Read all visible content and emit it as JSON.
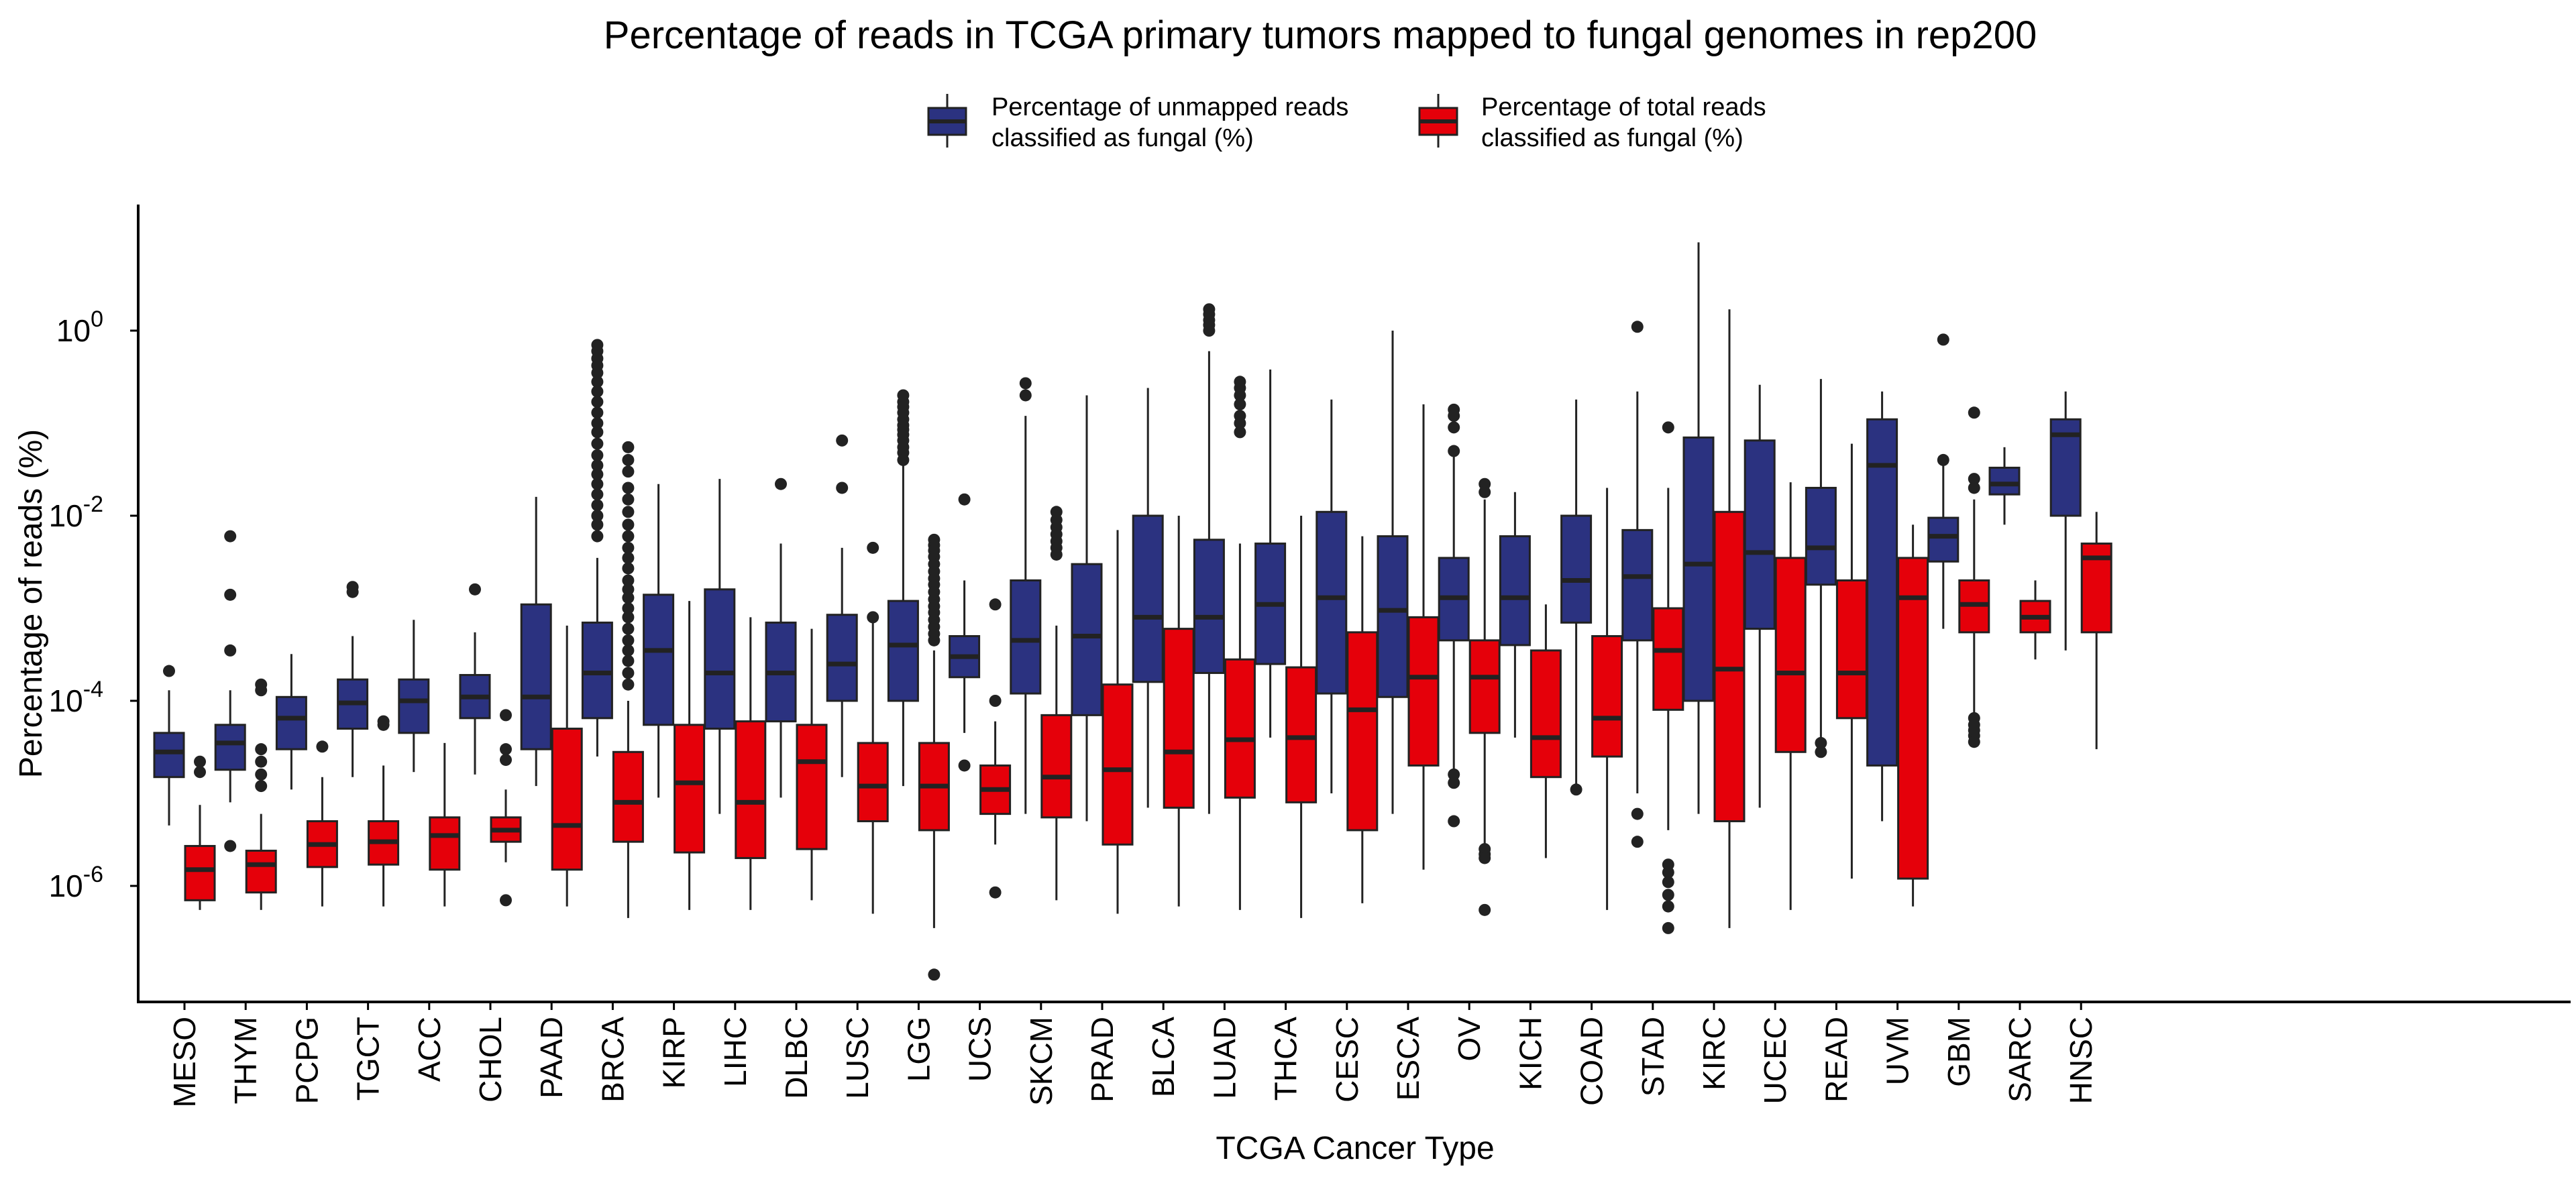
{
  "chart_data": {
    "type": "boxplot",
    "title": "Percentage of reads in TCGA primary tumors mapped to fungal genomes in rep200",
    "xlabel": "TCGA Cancer Type",
    "ylabel": "Percentage of reads (%)",
    "y_scale": "log10",
    "ylim": [
      1e-07,
      20
    ],
    "y_ticks": [
      {
        "value": 1,
        "base": "10",
        "exp": "0"
      },
      {
        "value": 0.01,
        "base": "10",
        "exp": "-2"
      },
      {
        "value": 0.0001,
        "base": "10",
        "exp": "-4"
      },
      {
        "value": 1e-06,
        "base": "10",
        "exp": "-6"
      }
    ],
    "grid": false,
    "legend": {
      "position": "top",
      "entries": [
        {
          "key": "unmapped",
          "label_line1": "Percentage of unmapped reads",
          "label_line2": "classified as fungal (%)",
          "color": "#2B3280"
        },
        {
          "key": "total",
          "label_line1": "Percentage of total reads",
          "label_line2": "classified as fungal (%)",
          "color": "#E5000A"
        }
      ]
    },
    "categories": [
      "MESO",
      "THYM",
      "PCPG",
      "TGCT",
      "ACC",
      "CHOL",
      "PAAD",
      "BRCA",
      "KIRP",
      "LIHC",
      "DLBC",
      "LUSC",
      "LGG",
      "UCS",
      "SKCM",
      "PRAD",
      "BLCA",
      "LUAD",
      "THCA",
      "CESC",
      "ESCA",
      "OV",
      "KICH",
      "COAD",
      "STAD",
      "KIRC",
      "UCEC",
      "READ",
      "UVM",
      "GBM",
      "SARC",
      "HNSC"
    ],
    "series": [
      {
        "key": "unmapped",
        "name": "Percentage of unmapped reads classified as fungal (%)",
        "color": "#2B3280",
        "boxes": [
          {
            "whislo": 4.5e-06,
            "q1": 1.5e-05,
            "med": 2.8e-05,
            "q3": 4.5e-05,
            "whishi": 0.00013,
            "outliers": [
              0.00021
            ]
          },
          {
            "whislo": 8e-06,
            "q1": 1.8e-05,
            "med": 3.5e-05,
            "q3": 5.5e-05,
            "whishi": 0.00013,
            "outliers": [
              0.006,
              0.0014,
              0.00035,
              2.7e-06
            ]
          },
          {
            "whislo": 1.1e-05,
            "q1": 3e-05,
            "med": 6.5e-05,
            "q3": 0.00011,
            "whishi": 0.00032,
            "outliers": []
          },
          {
            "whislo": 1.5e-05,
            "q1": 5e-05,
            "med": 9.5e-05,
            "q3": 0.00017,
            "whishi": 0.0005,
            "outliers": [
              0.0017,
              0.0015
            ]
          },
          {
            "whislo": 1.7e-05,
            "q1": 4.5e-05,
            "med": 0.0001,
            "q3": 0.00017,
            "whishi": 0.00075,
            "outliers": []
          },
          {
            "whislo": 1.6e-05,
            "q1": 6.5e-05,
            "med": 0.00011,
            "q3": 0.00019,
            "whishi": 0.00055,
            "outliers": [
              0.0016
            ]
          },
          {
            "whislo": 1.2e-05,
            "q1": 3e-05,
            "med": 0.00011,
            "q3": 0.0011,
            "whishi": 0.016,
            "outliers": []
          },
          {
            "whislo": 2.5e-05,
            "q1": 6.5e-05,
            "med": 0.0002,
            "q3": 0.0007,
            "whishi": 0.0035,
            "outliers": [
              0.7,
              0.6,
              0.5,
              0.42,
              0.35,
              0.28,
              0.22,
              0.17,
              0.13,
              0.1,
              0.08,
              0.06,
              0.045,
              0.035,
              0.028,
              0.022,
              0.017,
              0.013,
              0.01,
              0.008,
              0.006
            ]
          },
          {
            "whislo": 9e-06,
            "q1": 5.5e-05,
            "med": 0.00035,
            "q3": 0.0014,
            "whishi": 0.022,
            "outliers": []
          },
          {
            "whislo": 6e-06,
            "q1": 5e-05,
            "med": 0.0002,
            "q3": 0.0016,
            "whishi": 0.025,
            "outliers": []
          },
          {
            "whislo": 9e-06,
            "q1": 6e-05,
            "med": 0.0002,
            "q3": 0.0007,
            "whishi": 0.005,
            "outliers": [
              0.022
            ]
          },
          {
            "whislo": 1.5e-05,
            "q1": 0.0001,
            "med": 0.00025,
            "q3": 0.00085,
            "whishi": 0.0045,
            "outliers": [
              0.065,
              0.02
            ]
          },
          {
            "whislo": 1.2e-05,
            "q1": 0.0001,
            "med": 0.0004,
            "q3": 0.0012,
            "whishi": 0.035,
            "outliers": [
              0.2,
              0.17,
              0.15,
              0.13,
              0.11,
              0.095,
              0.085,
              0.075,
              0.065,
              0.055,
              0.048,
              0.04
            ]
          },
          {
            "whislo": 4.5e-05,
            "q1": 0.00018,
            "med": 0.0003,
            "q3": 0.0005,
            "whishi": 0.002,
            "outliers": [
              0.015,
              2e-05
            ]
          },
          {
            "whislo": 6e-06,
            "q1": 0.00012,
            "med": 0.00045,
            "q3": 0.002,
            "whishi": 0.12,
            "outliers": [
              0.27,
              0.2
            ]
          },
          {
            "whislo": 5e-06,
            "q1": 7e-05,
            "med": 0.0005,
            "q3": 0.003,
            "whishi": 0.2,
            "outliers": []
          },
          {
            "whislo": 7e-06,
            "q1": 0.00016,
            "med": 0.0008,
            "q3": 0.01,
            "whishi": 0.24,
            "outliers": []
          },
          {
            "whislo": 6e-06,
            "q1": 0.0002,
            "med": 0.0008,
            "q3": 0.0055,
            "whishi": 0.6,
            "outliers": [
              1.7,
              1.5,
              1.3,
              1.15,
              1
            ]
          },
          {
            "whislo": 4e-05,
            "q1": 0.00025,
            "med": 0.0011,
            "q3": 0.005,
            "whishi": 0.38,
            "outliers": []
          },
          {
            "whislo": 1e-05,
            "q1": 0.00012,
            "med": 0.0013,
            "q3": 0.011,
            "whishi": 0.18,
            "outliers": []
          },
          {
            "whislo": 6e-06,
            "q1": 0.00011,
            "med": 0.00095,
            "q3": 0.006,
            "whishi": 1,
            "outliers": []
          },
          {
            "whislo": 1.5e-05,
            "q1": 0.00045,
            "med": 0.0013,
            "q3": 0.0035,
            "whishi": 0.045,
            "outliers": [
              0.14,
              0.12,
              0.09,
              0.05,
              1.6e-05,
              1.3e-05,
              5e-06
            ]
          },
          {
            "whislo": 4e-05,
            "q1": 0.0004,
            "med": 0.0013,
            "q3": 0.006,
            "whishi": 0.018,
            "outliers": []
          },
          {
            "whislo": 1.2e-05,
            "q1": 0.0007,
            "med": 0.002,
            "q3": 0.01,
            "whishi": 0.18,
            "outliers": [
              1.1e-05
            ]
          },
          {
            "whislo": 1e-05,
            "q1": 0.00045,
            "med": 0.0022,
            "q3": 0.007,
            "whishi": 0.22,
            "outliers": [
              1.1,
              6e-06,
              3e-06
            ]
          },
          {
            "whislo": 6e-06,
            "q1": 0.0001,
            "med": 0.003,
            "q3": 0.07,
            "whishi": 9,
            "outliers": []
          },
          {
            "whislo": 7e-06,
            "q1": 0.0006,
            "med": 0.004,
            "q3": 0.065,
            "whishi": 0.26,
            "outliers": []
          },
          {
            "whislo": 4e-05,
            "q1": 0.0018,
            "med": 0.0045,
            "q3": 0.02,
            "whishi": 0.3,
            "outliers": [
              3.5e-05,
              2.8e-05
            ]
          },
          {
            "whislo": 5e-06,
            "q1": 2e-05,
            "med": 0.035,
            "q3": 0.11,
            "whishi": 0.22,
            "outliers": []
          },
          {
            "whislo": 0.0006,
            "q1": 0.0032,
            "med": 0.006,
            "q3": 0.0095,
            "whishi": 0.045,
            "outliers": [
              0.8,
              0.04
            ]
          },
          {
            "whislo": 0.008,
            "q1": 0.017,
            "med": 0.022,
            "q3": 0.033,
            "whishi": 0.055,
            "outliers": []
          },
          {
            "whislo": 0.00035,
            "q1": 0.01,
            "med": 0.075,
            "q3": 0.11,
            "whishi": 0.22,
            "outliers": []
          }
        ]
      },
      {
        "key": "total",
        "name": "Percentage of total reads classified as fungal (%)",
        "color": "#E5000A",
        "boxes": [
          {
            "whislo": 5.5e-07,
            "q1": 7e-07,
            "med": 1.5e-06,
            "q3": 2.7e-06,
            "whishi": 7.5e-06,
            "outliers": [
              2.2e-05,
              1.7e-05
            ]
          },
          {
            "whislo": 5.5e-07,
            "q1": 8.5e-07,
            "med": 1.7e-06,
            "q3": 2.4e-06,
            "whishi": 6e-06,
            "outliers": [
              0.00015,
              0.00013,
              3e-05,
              2.2e-05,
              1.6e-05,
              1.2e-05
            ]
          },
          {
            "whislo": 6e-07,
            "q1": 1.6e-06,
            "med": 2.8e-06,
            "q3": 5e-06,
            "whishi": 1.5e-05,
            "outliers": [
              3.2e-05
            ]
          },
          {
            "whislo": 6e-07,
            "q1": 1.7e-06,
            "med": 3e-06,
            "q3": 5e-06,
            "whishi": 2e-05,
            "outliers": [
              6e-05,
              5.5e-05
            ]
          },
          {
            "whislo": 6e-07,
            "q1": 1.5e-06,
            "med": 3.5e-06,
            "q3": 5.5e-06,
            "whishi": 3.5e-05,
            "outliers": []
          },
          {
            "whislo": 1.8e-06,
            "q1": 3e-06,
            "med": 4e-06,
            "q3": 5.5e-06,
            "whishi": 1.1e-05,
            "outliers": [
              7e-05,
              3e-05,
              2.3e-05,
              7e-07
            ]
          },
          {
            "whislo": 6e-07,
            "q1": 1.5e-06,
            "med": 4.5e-06,
            "q3": 5e-05,
            "whishi": 0.00065,
            "outliers": []
          },
          {
            "whislo": 4.5e-07,
            "q1": 3e-06,
            "med": 8e-06,
            "q3": 2.8e-05,
            "whishi": 0.0001,
            "outliers": [
              0.055,
              0.04,
              0.03,
              0.02,
              0.015,
              0.011,
              0.008,
              0.006,
              0.0045,
              0.0035,
              0.0027,
              0.002,
              0.0016,
              0.0013,
              0.001,
              0.0008,
              0.0006,
              0.00045,
              0.00035,
              0.00027,
              0.0002,
              0.00015
            ]
          },
          {
            "whislo": 5.5e-07,
            "q1": 2.3e-06,
            "med": 1.3e-05,
            "q3": 5.5e-05,
            "whishi": 0.0012,
            "outliers": []
          },
          {
            "whislo": 5.5e-07,
            "q1": 2e-06,
            "med": 8e-06,
            "q3": 6e-05,
            "whishi": 0.0008,
            "outliers": []
          },
          {
            "whislo": 7e-07,
            "q1": 2.5e-06,
            "med": 2.2e-05,
            "q3": 5.5e-05,
            "whishi": 0.0006,
            "outliers": []
          },
          {
            "whislo": 5e-07,
            "q1": 5e-06,
            "med": 1.2e-05,
            "q3": 3.5e-05,
            "whishi": 0.0008,
            "outliers": [
              0.0045,
              0.0008
            ]
          },
          {
            "whislo": 3.5e-07,
            "q1": 4e-06,
            "med": 1.2e-05,
            "q3": 3.5e-05,
            "whishi": 0.00035,
            "outliers": [
              0.0055,
              0.0048,
              0.0042,
              0.0036,
              0.003,
              0.0025,
              0.0021,
              0.0018,
              0.0015,
              0.00125,
              0.00105,
              0.0009,
              0.00075,
              0.00063,
              0.00053,
              0.00045,
              1.1e-07
            ]
          },
          {
            "whislo": 2.8e-06,
            "q1": 6e-06,
            "med": 1.1e-05,
            "q3": 2e-05,
            "whishi": 6e-05,
            "outliers": [
              0.0011,
              0.0001,
              8.5e-07
            ]
          },
          {
            "whislo": 7e-07,
            "q1": 5.5e-06,
            "med": 1.5e-05,
            "q3": 7e-05,
            "whishi": 0.00065,
            "outliers": [
              0.011,
              0.009,
              0.0075,
              0.0063,
              0.0053,
              0.0045,
              0.0038
            ]
          },
          {
            "whislo": 5e-07,
            "q1": 2.8e-06,
            "med": 1.8e-05,
            "q3": 0.00015,
            "whishi": 0.007,
            "outliers": []
          },
          {
            "whislo": 6e-07,
            "q1": 7e-06,
            "med": 2.8e-05,
            "q3": 0.0006,
            "whishi": 0.01,
            "outliers": []
          },
          {
            "whislo": 5.5e-07,
            "q1": 9e-06,
            "med": 3.8e-05,
            "q3": 0.00028,
            "whishi": 0.005,
            "outliers": [
              0.28,
              0.24,
              0.2,
              0.16,
              0.12,
              0.1,
              0.08
            ]
          },
          {
            "whislo": 4.5e-07,
            "q1": 8e-06,
            "med": 4e-05,
            "q3": 0.00023,
            "whishi": 0.01,
            "outliers": []
          },
          {
            "whislo": 6.5e-07,
            "q1": 4e-06,
            "med": 8e-05,
            "q3": 0.00055,
            "whishi": 0.006,
            "outliers": []
          },
          {
            "whislo": 1.5e-06,
            "q1": 2e-05,
            "med": 0.00018,
            "q3": 0.0008,
            "whishi": 0.16,
            "outliers": []
          },
          {
            "whislo": 2e-06,
            "q1": 4.5e-05,
            "med": 0.00018,
            "q3": 0.00045,
            "whishi": 0.015,
            "outliers": [
              0.022,
              0.018,
              2.5e-06,
              2.2e-06,
              2e-06,
              5.5e-07
            ]
          },
          {
            "whislo": 2e-06,
            "q1": 1.5e-05,
            "med": 4e-05,
            "q3": 0.00035,
            "whishi": 0.0011,
            "outliers": []
          },
          {
            "whislo": 5.5e-07,
            "q1": 2.5e-05,
            "med": 6.5e-05,
            "q3": 0.0005,
            "whishi": 0.02,
            "outliers": []
          },
          {
            "whislo": 4e-06,
            "q1": 8e-05,
            "med": 0.00035,
            "q3": 0.001,
            "whishi": 0.02,
            "outliers": [
              0.09,
              1.7e-06,
              1.4e-06,
              1.1e-06,
              8e-07,
              6e-07,
              3.5e-07
            ]
          },
          {
            "whislo": 3.5e-07,
            "q1": 5e-06,
            "med": 0.00022,
            "q3": 0.011,
            "whishi": 1.7,
            "outliers": []
          },
          {
            "whislo": 5.5e-07,
            "q1": 2.8e-05,
            "med": 0.0002,
            "q3": 0.0035,
            "whishi": 0.023,
            "outliers": []
          },
          {
            "whislo": 1.2e-06,
            "q1": 6.5e-05,
            "med": 0.0002,
            "q3": 0.002,
            "whishi": 0.06,
            "outliers": []
          },
          {
            "whislo": 6e-07,
            "q1": 1.2e-06,
            "med": 0.0013,
            "q3": 0.0035,
            "whishi": 0.008,
            "outliers": []
          },
          {
            "whislo": 4e-05,
            "q1": 0.00055,
            "med": 0.0011,
            "q3": 0.002,
            "whishi": 0.015,
            "outliers": [
              0.13,
              0.025,
              0.02,
              6.5e-05,
              5.5e-05,
              4.8e-05,
              4.2e-05,
              3.6e-05
            ]
          },
          {
            "whislo": 0.00028,
            "q1": 0.00055,
            "med": 0.0008,
            "q3": 0.0012,
            "whishi": 0.002,
            "outliers": []
          },
          {
            "whislo": 3e-05,
            "q1": 0.00055,
            "med": 0.0035,
            "q3": 0.005,
            "whishi": 0.011,
            "outliers": []
          }
        ]
      }
    ]
  }
}
